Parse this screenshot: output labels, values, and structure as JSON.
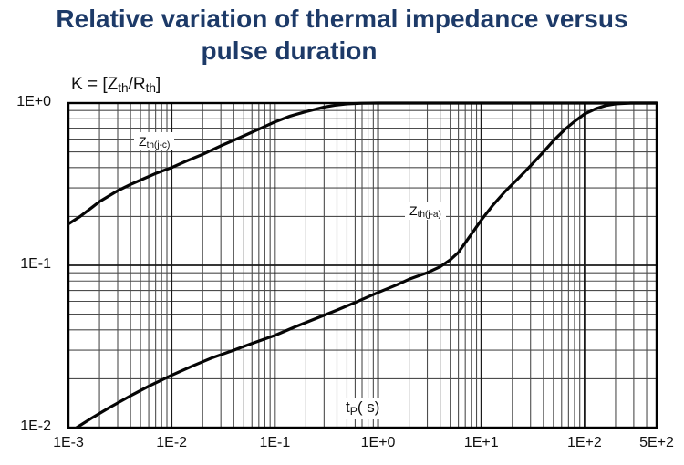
{
  "title": {
    "line1": "Relative variation of thermal impedance versus",
    "line2": "pulse duration",
    "color": "#1d3a68"
  },
  "chart_data": {
    "type": "line",
    "title": "Relative variation of thermal impedance versus pulse duration",
    "grid": {
      "on": true,
      "border_color": "#000000",
      "major_color": "#1a1a1a",
      "minor_color": "#4d4d4d",
      "background": "#ffffff"
    },
    "x_axis": {
      "label": "tP( s)",
      "label_segments": [
        {
          "t": "t"
        },
        {
          "s": "P"
        },
        {
          "t": "( s)"
        }
      ],
      "scale": "log",
      "min": 0.001,
      "max": 500,
      "ticks": [
        {
          "label": "1E-3",
          "value": 0.001
        },
        {
          "label": "1E-2",
          "value": 0.01
        },
        {
          "label": "1E-1",
          "value": 0.1
        },
        {
          "label": "1E+0",
          "value": 1
        },
        {
          "label": "1E+1",
          "value": 10
        },
        {
          "label": "1E+2",
          "value": 100
        },
        {
          "label": "5E+2",
          "value": 500
        }
      ]
    },
    "y_axis": {
      "label": "K = [Zth/Rth]",
      "label_segments": [
        {
          "t": "K = [Z"
        },
        {
          "s": "th"
        },
        {
          "t": "/R"
        },
        {
          "s": "th"
        },
        {
          "t": "]"
        }
      ],
      "scale": "log",
      "min": 0.01,
      "max": 1,
      "ticks": [
        {
          "label": "1E+0",
          "value": 1
        },
        {
          "label": "1E-1",
          "value": 0.1
        },
        {
          "label": "1E-2",
          "value": 0.01
        }
      ]
    },
    "series": [
      {
        "name": "Zth(j-c)",
        "name_segments": [
          {
            "t": "Z"
          },
          {
            "s": "th(j-c)"
          }
        ],
        "color": "#050505",
        "points": [
          [
            0.001,
            0.18
          ],
          [
            0.0013,
            0.2
          ],
          [
            0.0017,
            0.228
          ],
          [
            0.002,
            0.247
          ],
          [
            0.003,
            0.288
          ],
          [
            0.004,
            0.315
          ],
          [
            0.005,
            0.335
          ],
          [
            0.007,
            0.368
          ],
          [
            0.01,
            0.4
          ],
          [
            0.014,
            0.44
          ],
          [
            0.02,
            0.483
          ],
          [
            0.03,
            0.545
          ],
          [
            0.04,
            0.59
          ],
          [
            0.05,
            0.628
          ],
          [
            0.07,
            0.69
          ],
          [
            0.1,
            0.765
          ],
          [
            0.14,
            0.83
          ],
          [
            0.2,
            0.885
          ],
          [
            0.3,
            0.945
          ],
          [
            0.4,
            0.973
          ],
          [
            0.5,
            0.988
          ],
          [
            0.7,
            0.998
          ],
          [
            1,
            1.0
          ],
          [
            500,
            1.0
          ]
        ]
      },
      {
        "name": "Zth(j-a)",
        "name_segments": [
          {
            "t": "Z"
          },
          {
            "s": "th(j-a)"
          }
        ],
        "color": "#050505",
        "points": [
          [
            0.0012,
            0.01
          ],
          [
            0.0017,
            0.0115
          ],
          [
            0.0025,
            0.0133
          ],
          [
            0.004,
            0.0157
          ],
          [
            0.006,
            0.018
          ],
          [
            0.01,
            0.021
          ],
          [
            0.016,
            0.024
          ],
          [
            0.025,
            0.027
          ],
          [
            0.04,
            0.03
          ],
          [
            0.06,
            0.033
          ],
          [
            0.1,
            0.037
          ],
          [
            0.16,
            0.042
          ],
          [
            0.25,
            0.047
          ],
          [
            0.4,
            0.053
          ],
          [
            0.6,
            0.059
          ],
          [
            1,
            0.068
          ],
          [
            1.5,
            0.0755
          ],
          [
            2,
            0.082
          ],
          [
            3,
            0.09
          ],
          [
            4,
            0.098
          ],
          [
            5,
            0.108
          ],
          [
            6,
            0.12
          ],
          [
            8,
            0.155
          ],
          [
            10,
            0.19
          ],
          [
            13,
            0.235
          ],
          [
            17,
            0.285
          ],
          [
            22,
            0.335
          ],
          [
            30,
            0.41
          ],
          [
            40,
            0.5
          ],
          [
            50,
            0.585
          ],
          [
            65,
            0.69
          ],
          [
            80,
            0.77
          ],
          [
            100,
            0.855
          ],
          [
            130,
            0.925
          ],
          [
            160,
            0.965
          ],
          [
            200,
            0.988
          ],
          [
            280,
            1.0
          ],
          [
            500,
            1.0
          ]
        ]
      }
    ]
  }
}
